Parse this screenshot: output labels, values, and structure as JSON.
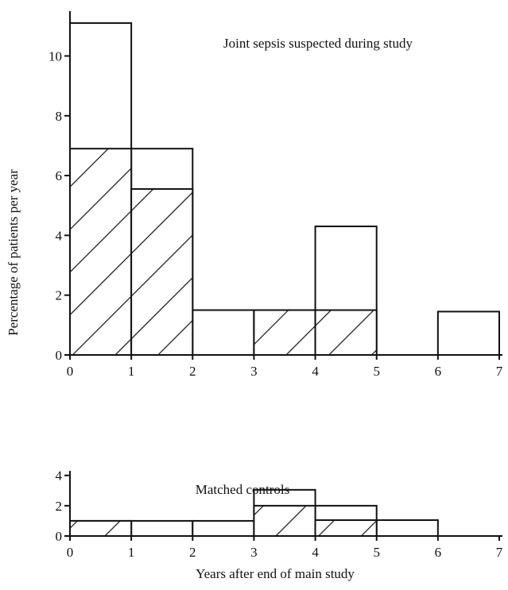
{
  "figure": {
    "ylabel": "Percentage of patients per year",
    "xlabel": "Years after end of main study"
  },
  "chart_data": [
    {
      "type": "bar",
      "title": "Joint sepsis suspected during study",
      "ylim": [
        0,
        11.5
      ],
      "xlim": [
        0,
        7
      ],
      "yticks": [
        0,
        2,
        4,
        6,
        8,
        10
      ],
      "xticks": [
        0,
        1,
        2,
        3,
        4,
        5,
        6,
        7
      ],
      "series": [
        {
          "bins": [
            [
              0,
              1
            ],
            [
              1,
              2
            ],
            [
              2,
              3
            ],
            [
              3,
              4
            ],
            [
              4,
              5
            ],
            [
              5,
              6
            ],
            [
              6,
              7
            ]
          ],
          "values": [
            11.1,
            6.9,
            1.5,
            1.5,
            4.3,
            0,
            1.45
          ],
          "hatched": false
        },
        {
          "bins": [
            [
              0,
              1
            ],
            [
              1,
              2
            ],
            [
              2,
              3
            ],
            [
              3,
              4
            ],
            [
              4,
              5
            ],
            [
              5,
              6
            ],
            [
              6,
              7
            ]
          ],
          "values": [
            6.9,
            5.55,
            0,
            1.5,
            1.5,
            0,
            0
          ],
          "hatched": true
        }
      ]
    },
    {
      "type": "bar",
      "title": "Matched controls",
      "ylim": [
        0,
        4.3
      ],
      "xlim": [
        0,
        7
      ],
      "yticks": [
        0,
        2,
        4
      ],
      "xticks": [
        0,
        1,
        2,
        3,
        4,
        5,
        6,
        7
      ],
      "series": [
        {
          "bins": [
            [
              0,
              1
            ],
            [
              1,
              2
            ],
            [
              2,
              3
            ],
            [
              3,
              4
            ],
            [
              4,
              5
            ],
            [
              5,
              6
            ],
            [
              6,
              7
            ]
          ],
          "values": [
            1.0,
            1.0,
            1.0,
            3.05,
            2.0,
            1.05,
            0
          ],
          "hatched": false
        },
        {
          "bins": [
            [
              0,
              1
            ],
            [
              1,
              2
            ],
            [
              2,
              3
            ],
            [
              3,
              4
            ],
            [
              4,
              5
            ],
            [
              5,
              6
            ],
            [
              6,
              7
            ]
          ],
          "values": [
            1.0,
            0,
            0,
            2.0,
            1.05,
            0,
            0
          ],
          "hatched": true
        }
      ]
    }
  ]
}
